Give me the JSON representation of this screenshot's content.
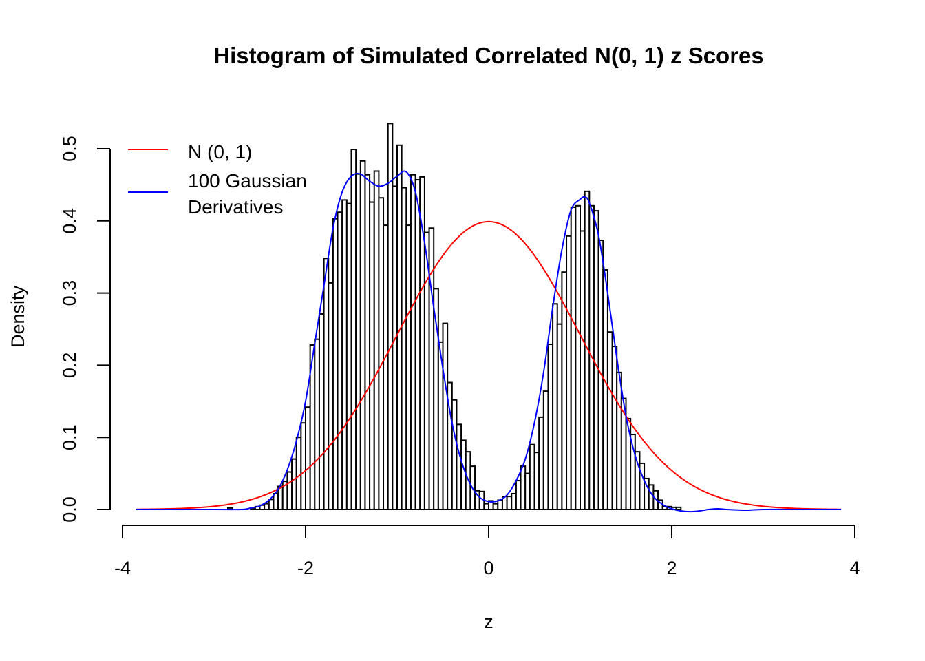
{
  "chart_data": {
    "type": "histogram",
    "title": "Histogram of Simulated Correlated N(0, 1) z Scores",
    "xlabel": "z",
    "ylabel": "Density",
    "xlim": [
      -4,
      4
    ],
    "ylim": [
      0,
      0.5
    ],
    "x_ticks": [
      "-4",
      "-2",
      "0",
      "2",
      "4"
    ],
    "x_tick_values": [
      -4,
      -2,
      0,
      2,
      4
    ],
    "y_ticks": [
      "0.0",
      "0.1",
      "0.2",
      "0.3",
      "0.4",
      "0.5"
    ],
    "y_tick_values": [
      0,
      0.1,
      0.2,
      0.3,
      0.4,
      0.5
    ],
    "grid": false,
    "legend_position": "top-left",
    "bin_width": 0.05,
    "bins_left_edges_start": -2.85,
    "bin_densities": [
      0.002,
      0,
      0,
      0,
      0,
      0.002,
      0.004,
      0.006,
      0.008,
      0.014,
      0.022,
      0.032,
      0.039,
      0.052,
      0.07,
      0.1,
      0.12,
      0.142,
      0.228,
      0.236,
      0.271,
      0.348,
      0.314,
      0.403,
      0.412,
      0.429,
      0.424,
      0.499,
      0.465,
      0.483,
      0.464,
      0.426,
      0.469,
      0.432,
      0.394,
      0.535,
      0.448,
      0.505,
      0.446,
      0.394,
      0.464,
      0.457,
      0.461,
      0.384,
      0.39,
      0.306,
      0.232,
      0.258,
      0.176,
      0.152,
      0.118,
      0.096,
      0.08,
      0.06,
      0.026,
      0.025,
      0.008,
      0.012,
      0.008,
      0.013,
      0.018,
      0.018,
      0.022,
      0.04,
      0.06,
      0.05,
      0.09,
      0.079,
      0.128,
      0.164,
      0.229,
      0.285,
      0.257,
      0.329,
      0.379,
      0.419,
      0.421,
      0.386,
      0.441,
      0.421,
      0.414,
      0.373,
      0.332,
      0.246,
      0.226,
      0.19,
      0.154,
      0.126,
      0.104,
      0.08,
      0.064,
      0.043,
      0.034,
      0.026,
      0.013,
      0.004,
      0.004,
      0.003,
      0.003
    ],
    "series": [
      {
        "name": "N (0, 1)",
        "type": "line",
        "color": "#ff0000",
        "function": "standard normal density",
        "x_range": [
          -3.85,
          3.85
        ]
      },
      {
        "name": "100 Gaussian Derivatives",
        "type": "line",
        "color": "#0000ff",
        "x": [
          -3.85,
          -3.0,
          -2.7,
          -2.6,
          -2.5,
          -2.4,
          -2.3,
          -2.2,
          -2.1,
          -2.0,
          -1.9,
          -1.8,
          -1.7,
          -1.6,
          -1.5,
          -1.4,
          -1.3,
          -1.2,
          -1.1,
          -1.0,
          -0.9,
          -0.8,
          -0.7,
          -0.6,
          -0.5,
          -0.4,
          -0.3,
          -0.2,
          -0.1,
          0.0,
          0.1,
          0.2,
          0.3,
          0.4,
          0.5,
          0.6,
          0.7,
          0.8,
          0.9,
          1.0,
          1.05,
          1.1,
          1.2,
          1.3,
          1.4,
          1.5,
          1.6,
          1.7,
          1.8,
          1.9,
          2.0,
          2.1,
          2.2,
          2.3,
          2.4,
          2.5,
          2.6,
          2.8,
          3.0,
          3.4,
          3.85
        ],
        "y": [
          0,
          0,
          0,
          0.002,
          0.005,
          0.013,
          0.028,
          0.055,
          0.095,
          0.15,
          0.23,
          0.31,
          0.39,
          0.44,
          0.462,
          0.465,
          0.455,
          0.448,
          0.452,
          0.462,
          0.468,
          0.44,
          0.37,
          0.28,
          0.195,
          0.12,
          0.068,
          0.035,
          0.017,
          0.011,
          0.012,
          0.02,
          0.04,
          0.07,
          0.12,
          0.19,
          0.28,
          0.36,
          0.415,
          0.43,
          0.433,
          0.425,
          0.38,
          0.3,
          0.21,
          0.13,
          0.075,
          0.04,
          0.018,
          0.007,
          0.001,
          -0.002,
          -0.003,
          -0.002,
          0,
          0.001,
          0,
          -0.001,
          0,
          0,
          0
        ]
      }
    ],
    "legend": [
      {
        "lines": [
          "N (0, 1)"
        ],
        "color": "#ff0000"
      },
      {
        "lines": [
          "100 Gaussian",
          "Derivatives"
        ],
        "color": "#0000ff"
      }
    ]
  }
}
